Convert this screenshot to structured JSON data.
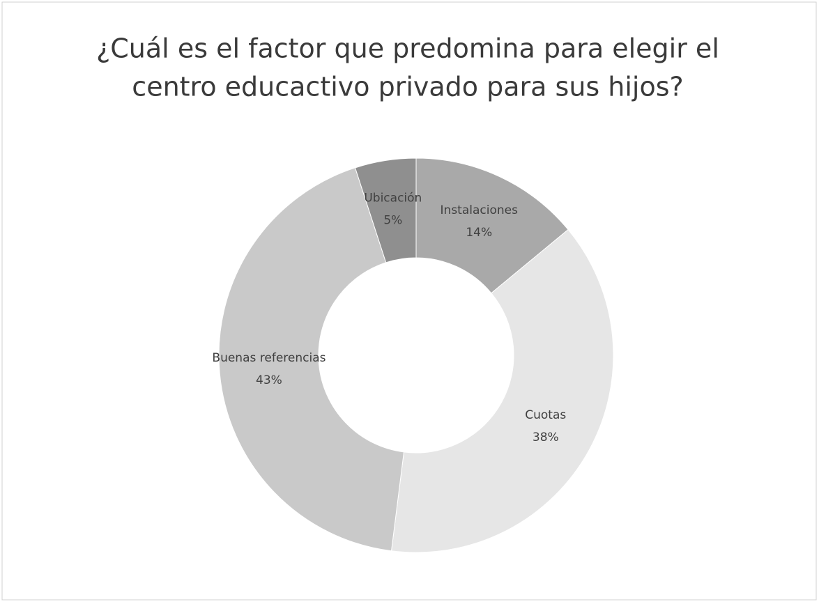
{
  "chart_data": {
    "type": "donut",
    "title": [
      "¿Cuál es el factor que predomina para elegir el",
      "centro educactivo privado para sus hijos?"
    ],
    "categories": [
      "Instalaciones",
      "Cuotas",
      "Buenas referencias",
      "Ubicación"
    ],
    "values": [
      14,
      38,
      43,
      5
    ],
    "value_labels": [
      "14%",
      "38%",
      "43%",
      "5%"
    ],
    "colors": [
      "#a9a9a9",
      "#e6e6e6",
      "#c9c9c9",
      "#8f8f8f"
    ]
  }
}
